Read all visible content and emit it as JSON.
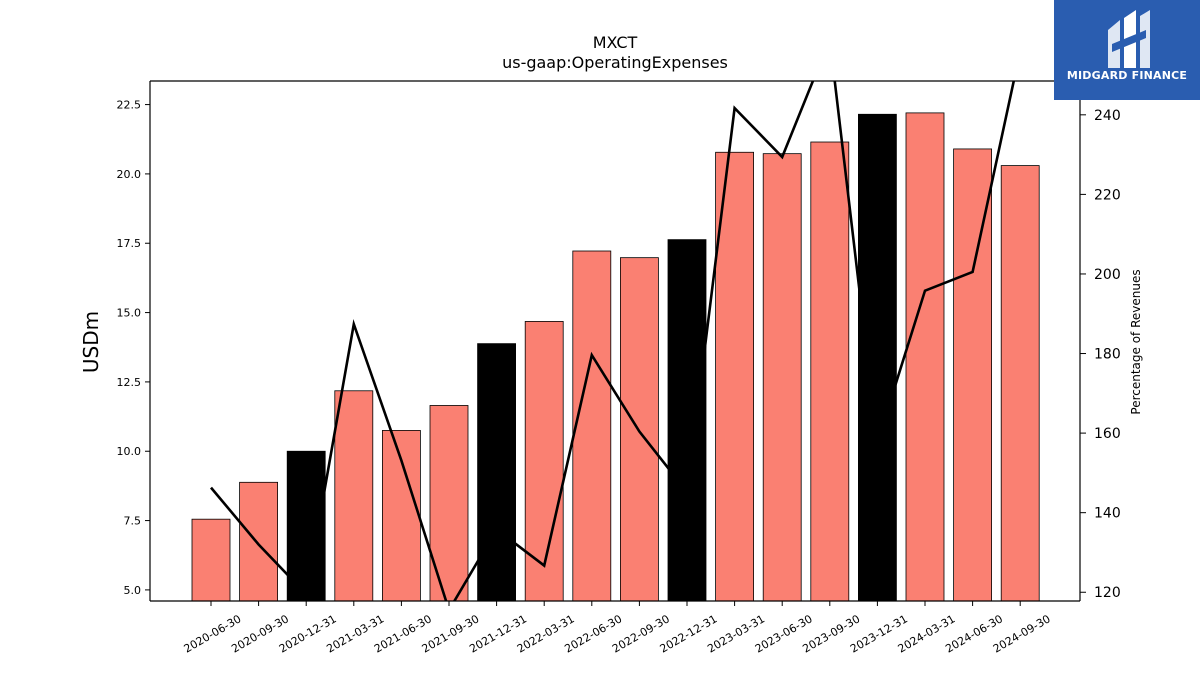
{
  "chart_data": {
    "type": "bar+line",
    "title": "MXCT",
    "subtitle": "us-gaap:OperatingExpenses",
    "ylabel": "USDm",
    "y2label": "Percentage of Revenues",
    "ylim": [
      4.6,
      23.35
    ],
    "y2lim": [
      117.8,
      248.5
    ],
    "yticks": [
      "5.0",
      "7.5",
      "10.0",
      "12.5",
      "15.0",
      "17.5",
      "20.0",
      "22.5"
    ],
    "y2ticks": [
      "120",
      "140",
      "160",
      "180",
      "200",
      "220",
      "240"
    ],
    "categories": [
      "2020-06-30",
      "2020-09-30",
      "2020-12-31",
      "2021-03-31",
      "2021-06-30",
      "2021-09-30",
      "2021-12-31",
      "2022-03-31",
      "2022-06-30",
      "2022-09-30",
      "2022-12-31",
      "2023-03-31",
      "2023-06-30",
      "2023-09-30",
      "2023-12-31",
      "2024-03-31",
      "2024-06-30",
      "2024-09-30"
    ],
    "series": [
      {
        "kind": "bar",
        "values": [
          7.55,
          8.88,
          10.0,
          12.18,
          10.75,
          11.65,
          13.88,
          14.68,
          17.22,
          16.98,
          17.63,
          20.78,
          20.73,
          21.15,
          22.15,
          22.2,
          20.9,
          20.3
        ],
        "colors": [
          "#fa8072",
          "#fa8072",
          "#000000",
          "#fa8072",
          "#fa8072",
          "#fa8072",
          "#000000",
          "#fa8072",
          "#fa8072",
          "#fa8072",
          "#000000",
          "#fa8072",
          "#fa8072",
          "#fa8072",
          "#000000",
          "#fa8072",
          "#fa8072",
          "#fa8072"
        ]
      },
      {
        "kind": "line",
        "axis": "right",
        "values": [
          146.3,
          132.0,
          119.5,
          187.4,
          153.1,
          115.5,
          135.8,
          126.7,
          179.6,
          160.4,
          145.2,
          241.7,
          229.4,
          259.0,
          157.7,
          195.8,
          200.5,
          256.0
        ],
        "color": "#000000"
      }
    ],
    "grid": false,
    "legend": "none"
  },
  "logo": {
    "text": "MIDGARD FINANCE",
    "background": "#2a5db0"
  }
}
